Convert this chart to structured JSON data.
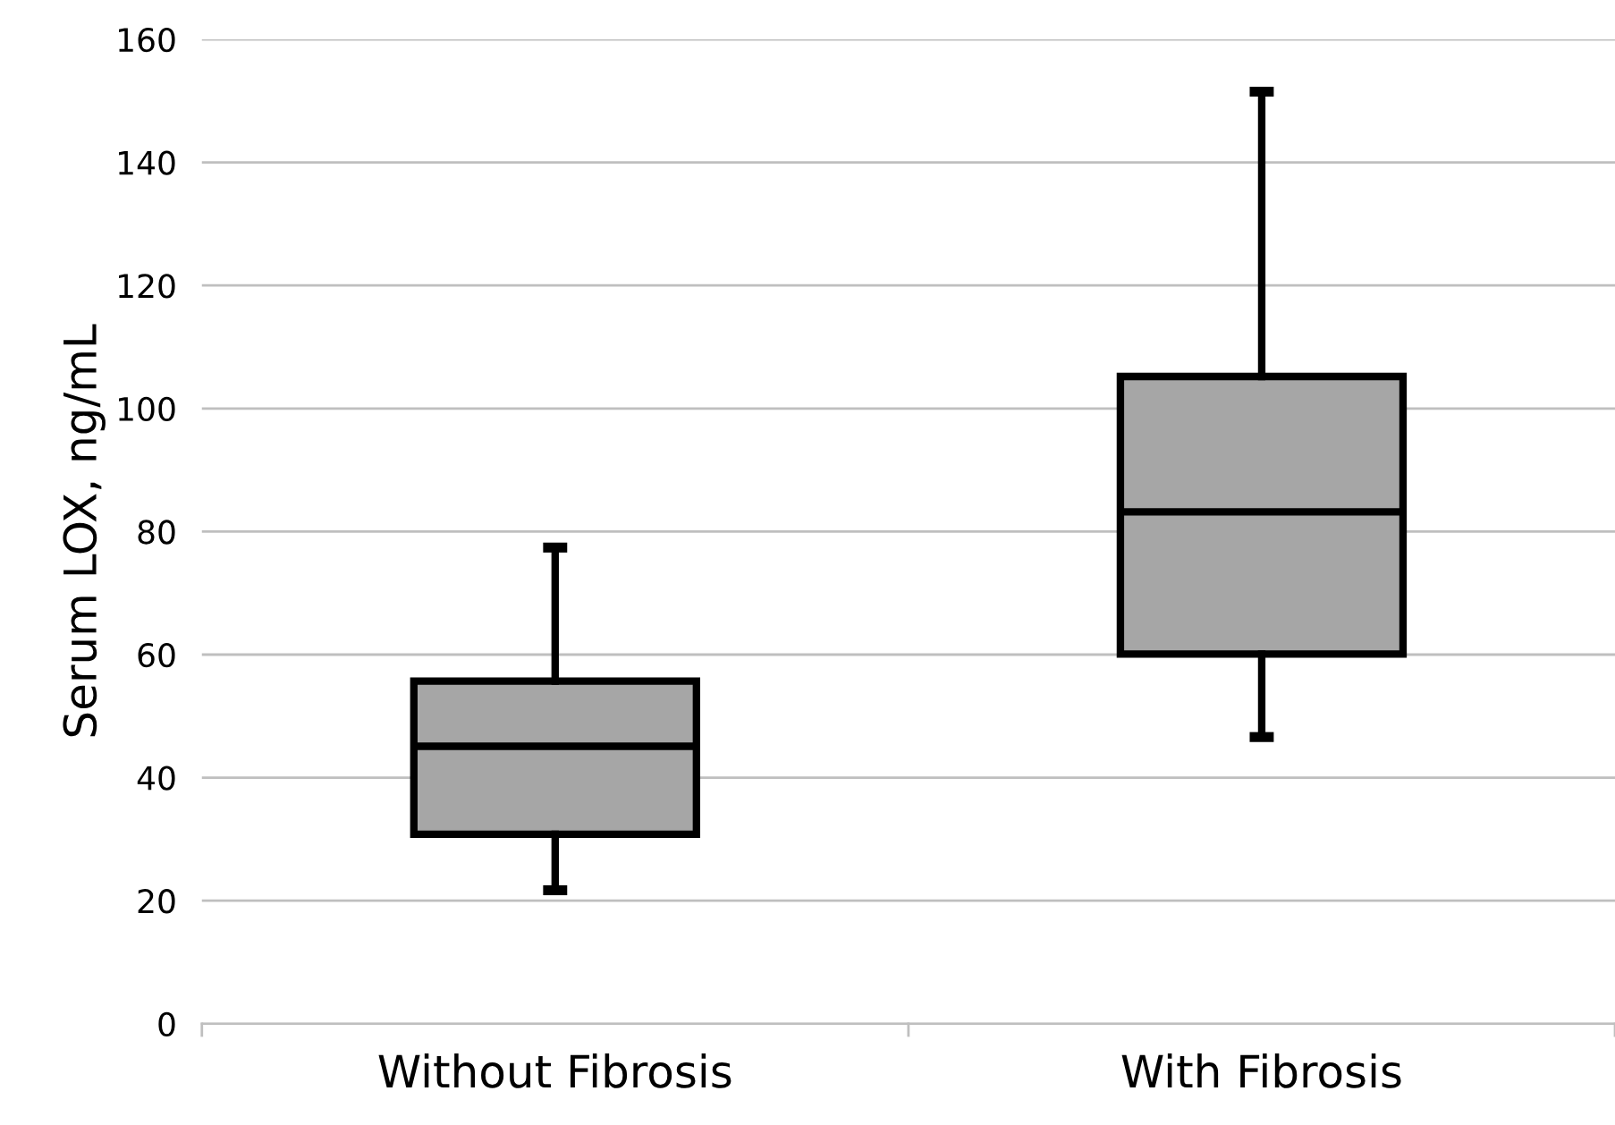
{
  "chart_data": {
    "type": "box",
    "ylabel": "Serum LOX, ng/mL",
    "categories": [
      "Without Fibrosis",
      "With Fibrosis"
    ],
    "boxes": [
      {
        "low": 21.7,
        "q1": 30.8,
        "median": 45.1,
        "q3": 55.7,
        "high": 77.4
      },
      {
        "low": 46.6,
        "q1": 60.1,
        "median": 83.2,
        "q3": 105.2,
        "high": 151.5
      }
    ],
    "color": "#a6a6a6",
    "ylim": [
      0,
      160
    ],
    "yticks": [
      0,
      20,
      40,
      60,
      80,
      100,
      120,
      140,
      160
    ],
    "grid": "y"
  }
}
